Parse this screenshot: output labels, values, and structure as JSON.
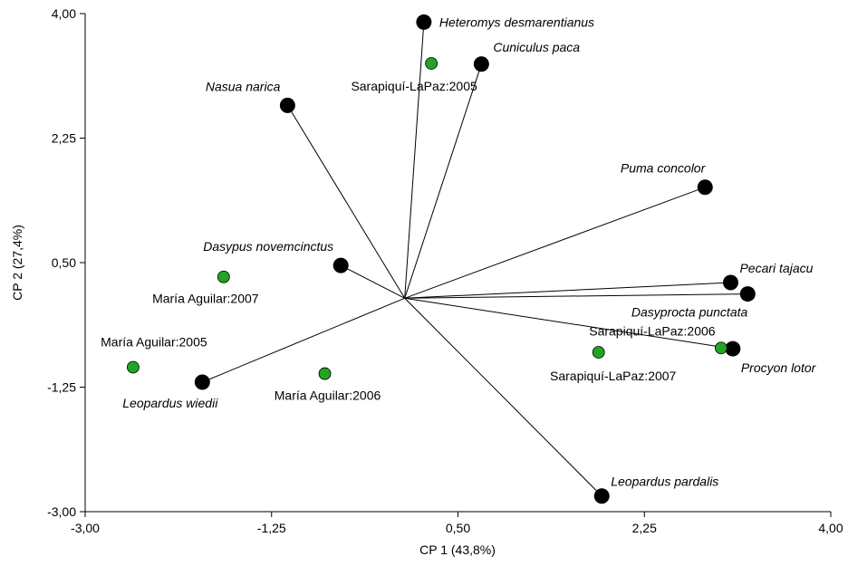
{
  "chart_data": {
    "type": "scatter",
    "subtype": "biplot",
    "xlabel": "CP 1 (43,8%)",
    "ylabel": "CP 2 (27,4%)",
    "xlim": [
      -3.0,
      4.0
    ],
    "ylim": [
      -3.0,
      4.0
    ],
    "x_ticks": [
      "-3,00",
      "-1,25",
      "0,50",
      "2,25",
      "4,00"
    ],
    "y_ticks": [
      "4,00",
      "2,25",
      "0,50",
      "-1,25",
      "-3,00"
    ],
    "x_tick_values": [
      -3.0,
      -1.25,
      0.5,
      2.25,
      4.0
    ],
    "y_tick_values": [
      4.0,
      2.25,
      0.5,
      -1.25,
      -3.0
    ],
    "grid": false,
    "origin": [
      0.0,
      0.0
    ],
    "colors": {
      "species": "#000000",
      "sites": "#22a522"
    },
    "species": [
      {
        "name": "Heteromys desmarentianus",
        "x": 0.18,
        "y": 3.88
      },
      {
        "name": "Cuniculus paca",
        "x": 0.72,
        "y": 3.29
      },
      {
        "name": "Nasua narica",
        "x": -1.1,
        "y": 2.71
      },
      {
        "name": "Puma concolor",
        "x": 2.82,
        "y": 1.56
      },
      {
        "name": "Dasypus novemcinctus",
        "x": -0.6,
        "y": 0.46
      },
      {
        "name": "Pecari tajacu",
        "x": 3.06,
        "y": 0.22
      },
      {
        "name": "Dasyprocta punctata",
        "x": 3.22,
        "y": 0.06
      },
      {
        "name": "Procyon lotor",
        "x": 3.08,
        "y": -0.71
      },
      {
        "name": "Leopardus wiedii",
        "x": -1.9,
        "y": -1.18
      },
      {
        "name": "Leopardus pardalis",
        "x": 1.85,
        "y": -2.78
      }
    ],
    "sites": [
      {
        "name": "Sarapiquí-LaPaz:2005",
        "x": 0.25,
        "y": 3.3
      },
      {
        "name": "María Aguilar:2007",
        "x": -1.7,
        "y": 0.3
      },
      {
        "name": "María Aguilar:2005",
        "x": -2.55,
        "y": -0.97
      },
      {
        "name": "María Aguilar:2006",
        "x": -0.75,
        "y": -1.06
      },
      {
        "name": "Sarapiquí-LaPaz:2007",
        "x": 1.82,
        "y": -0.76
      },
      {
        "name": "Sarapiquí-LaPaz:2006",
        "x": 2.97,
        "y": -0.7
      }
    ]
  }
}
